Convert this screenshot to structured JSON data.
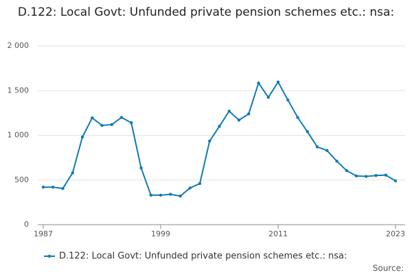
{
  "chart_data": {
    "type": "line",
    "title": "D.122: Local Govt: Unfunded private pension schemes etc.: nsa:",
    "x": [
      1987,
      1988,
      1989,
      1990,
      1991,
      1992,
      1993,
      1994,
      1995,
      1996,
      1997,
      1998,
      1999,
      2000,
      2001,
      2002,
      2003,
      2004,
      2005,
      2006,
      2007,
      2008,
      2009,
      2010,
      2011,
      2012,
      2013,
      2014,
      2015,
      2016,
      2017,
      2018,
      2019,
      2020,
      2021,
      2022,
      2023
    ],
    "series": [
      {
        "name": "D.122: Local Govt: Unfunded private pension schemes etc.: nsa:",
        "color": "#0f7ab5",
        "values": [
          420,
          420,
          405,
          580,
          980,
          1195,
          1110,
          1120,
          1200,
          1140,
          635,
          330,
          330,
          340,
          320,
          410,
          460,
          935,
          1100,
          1270,
          1170,
          1240,
          1585,
          1425,
          1595,
          1395,
          1200,
          1040,
          870,
          830,
          710,
          605,
          545,
          540,
          550,
          555,
          490
        ]
      }
    ],
    "xlim": [
      1987,
      2023
    ],
    "xticks": [
      1987,
      1999,
      2011,
      2023
    ],
    "ylim": [
      0,
      2000
    ],
    "yticks": [
      0,
      500,
      {
        "value": 1000,
        "label": "1 000"
      },
      {
        "value": 1500,
        "label": "1 500"
      },
      {
        "value": 2000,
        "label": "2 000"
      }
    ],
    "grid": true,
    "legend": "bottom",
    "source_label": "Source:"
  }
}
